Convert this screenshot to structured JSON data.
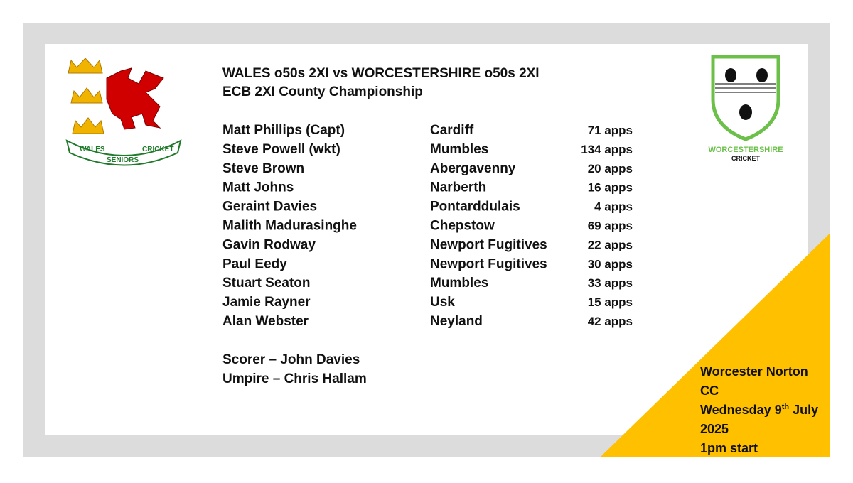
{
  "header": {
    "title": "WALES o50s 2XI vs WORCESTERSHIRE o50s 2XI",
    "subtitle": "ECB 2XI County Championship"
  },
  "logos": {
    "wales": {
      "words": [
        "WALES",
        "SENIORS",
        "CRICKET"
      ]
    },
    "worcestershire": {
      "name": "WORCESTERSHIRE",
      "sub": "CRICKET"
    }
  },
  "team": [
    [
      "Matt Phillips  (Capt)",
      "Cardiff",
      "71 apps"
    ],
    [
      "Steve Powell  (wkt)",
      "Mumbles",
      "134 apps"
    ],
    [
      "Steve Brown",
      "Abergavenny",
      "20 apps"
    ],
    [
      "Matt Johns",
      "Narberth",
      "16 apps"
    ],
    [
      "Geraint Davies",
      "Pontarddulais",
      "4 apps"
    ],
    [
      "Malith Madurasinghe",
      "Chepstow",
      "69 apps"
    ],
    [
      "Gavin Rodway",
      "Newport Fugitives",
      "22 apps"
    ],
    [
      "Paul Eedy",
      "Newport Fugitives",
      "30 apps"
    ],
    [
      "Stuart Seaton",
      "Mumbles",
      "33 apps"
    ],
    [
      "Jamie Rayner",
      "Usk",
      "15 apps"
    ],
    [
      "Alan Webster",
      "Neyland",
      "42 apps"
    ]
  ],
  "officials": [
    "Scorer – John Davies",
    "Umpire – Chris Hallam"
  ],
  "fixture": {
    "venue": [
      "Worcester Norton",
      "CC"
    ],
    "date": {
      "weekday_day": "Wednesday 9",
      "suffix": "th",
      "month": "July",
      "year": "2025"
    },
    "start": "1pm start"
  }
}
